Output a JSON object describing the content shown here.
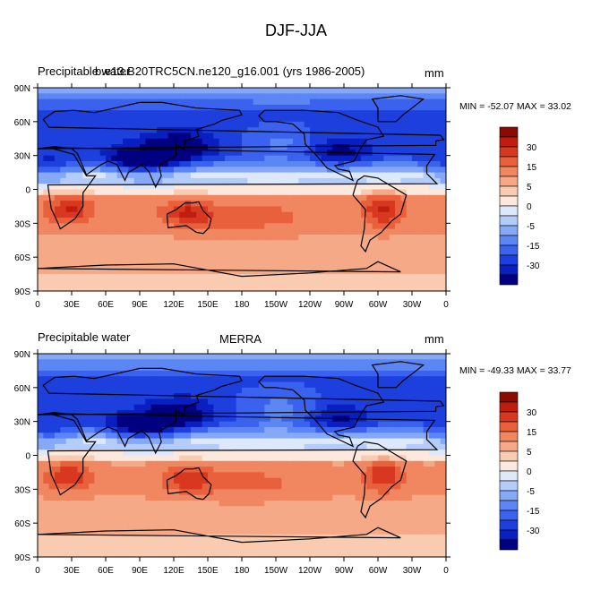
{
  "figure_title": "DJF-JJA",
  "colors": {
    "scale": [
      "#000080",
      "#0a1fbf",
      "#1d3fdd",
      "#3a62ee",
      "#5b86f4",
      "#86a9f7",
      "#b4ccfa",
      "#dde8fb",
      "#fde8dd",
      "#f9cbb0",
      "#f5a986",
      "#f08760",
      "#e8603c",
      "#d8381f",
      "#bf1e0e",
      "#8b0a03"
    ],
    "continent_outline": "#000000"
  },
  "chart_data": [
    {
      "type": "heatmap",
      "variable": "Precipitable water",
      "title": "b.e13.B20TRC5CN.ne120_g16.001 (yrs 1986-2005)",
      "units": "mm",
      "stats_text": "MIN = -52.07 MAX =  33.02",
      "min": -52.07,
      "max": 33.02,
      "lon_ticks": [
        "0",
        "30E",
        "60E",
        "90E",
        "120E",
        "150E",
        "180",
        "150W",
        "120W",
        "90W",
        "60W",
        "30W",
        "0"
      ],
      "lat_ticks": [
        "90N",
        "60N",
        "30N",
        "0",
        "30S",
        "60S",
        "90S"
      ],
      "colorbar_levels": [
        -35,
        -30,
        -25,
        -20,
        -15,
        -10,
        -5,
        -2.5,
        0,
        2.5,
        5,
        10,
        15,
        20,
        25,
        30,
        35
      ],
      "colorbar_labels": [
        "30",
        "15",
        "5",
        "0",
        "-5",
        "-15",
        "-30"
      ]
    },
    {
      "type": "heatmap",
      "variable": "Precipitable water",
      "title": "MERRA",
      "units": "mm",
      "stats_text": "MIN = -49.33 MAX =  33.77",
      "min": -49.33,
      "max": 33.77,
      "lon_ticks": [
        "0",
        "30E",
        "60E",
        "90E",
        "120E",
        "150E",
        "180",
        "150W",
        "120W",
        "90W",
        "60W",
        "30W",
        "0"
      ],
      "lat_ticks": [
        "90N",
        "60N",
        "30N",
        "0",
        "30S",
        "60S",
        "90S"
      ],
      "colorbar_levels": [
        -35,
        -30,
        -25,
        -20,
        -15,
        -10,
        -5,
        -2.5,
        0,
        2.5,
        5,
        10,
        15,
        20,
        25,
        30,
        35
      ],
      "colorbar_labels": [
        "30",
        "15",
        "5",
        "0",
        "-5",
        "-15",
        "-30"
      ]
    }
  ]
}
